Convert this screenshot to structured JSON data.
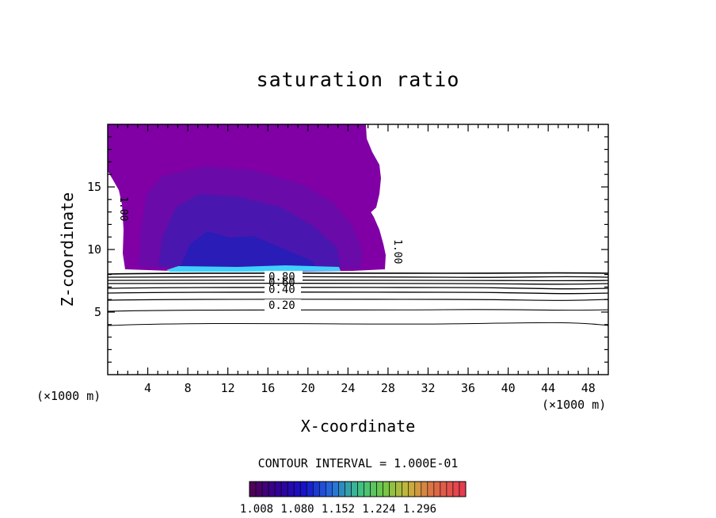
{
  "chart_data": {
    "type": "contour",
    "title": "saturation ratio",
    "xlabel": "X-coordinate",
    "ylabel": "Z-coordinate",
    "x_unit_left": "(×1000 m)",
    "x_unit_right": "(×1000 m)",
    "xlim": [
      0,
      50
    ],
    "ylim": [
      0,
      20
    ],
    "x_ticks": [
      "4",
      "8",
      "12",
      "16",
      "20",
      "24",
      "28",
      "32",
      "36",
      "40",
      "44",
      "48"
    ],
    "y_ticks": [
      "5",
      "10",
      "15"
    ],
    "contour_interval_text": "CONTOUR INTERVAL = 1.000E-01",
    "contour_labels": [
      "0.80",
      "0.60",
      "0.40",
      "0.20"
    ],
    "cloud_edge_label": "1.00",
    "colorbar": {
      "ticks": [
        "1.008",
        "1.080",
        "1.152",
        "1.224",
        "1.296"
      ]
    },
    "colors": {
      "background": "#ffffff",
      "axes": "#000000",
      "cloud_outer": "#8000a6",
      "cloud_mid": "#6a0aa8",
      "cloud_inner": "#4a16b0",
      "cloud_core": "#2a1cb6",
      "cloud_base_highlight": "#3fd0ff"
    }
  }
}
